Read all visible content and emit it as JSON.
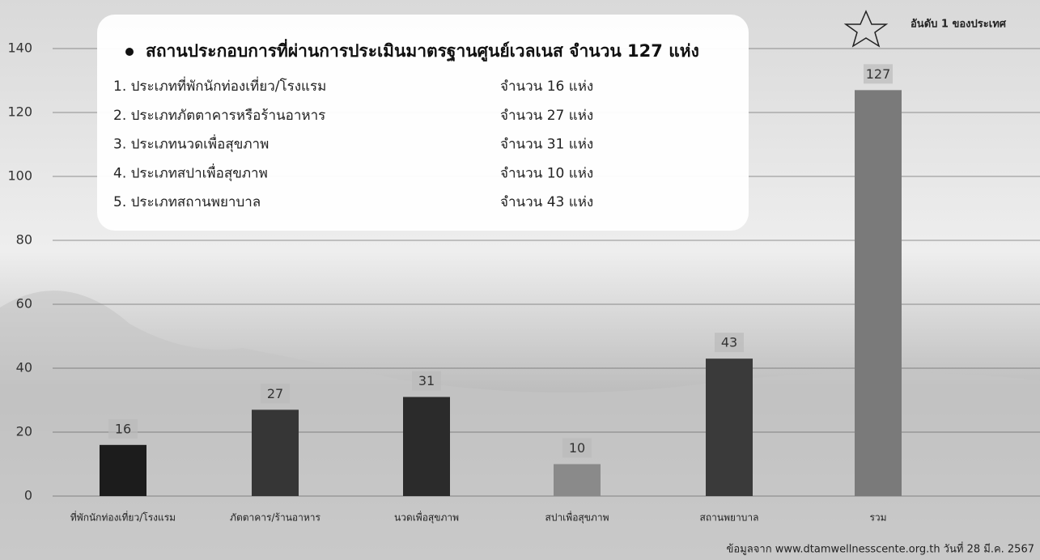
{
  "chart_data": {
    "type": "bar",
    "categories": [
      "ที่พักนักท่องเที่ยว/โรงแรม",
      "ภัตตาคาร/ร้านอาหาร",
      "นวดเพื่อสุขภาพ",
      "สปาเพื่อสุขภาพ",
      "สถานพยาบาล",
      "รวม"
    ],
    "values": [
      16,
      27,
      31,
      10,
      43,
      127
    ],
    "colors": [
      "#1c1c1c",
      "#363636",
      "#2b2b2b",
      "#8a8a8a",
      "#3a3a3a",
      "#7a7a7a"
    ],
    "ylim": [
      0,
      140
    ],
    "yticks": [
      0,
      20,
      40,
      60,
      80,
      100,
      120,
      140
    ],
    "grid": true,
    "info_box": {
      "title": "สถานประกอบการที่ผ่านการประเมินมาตรฐานศูนย์เวลเนส จำนวน 127 แห่ง",
      "items": [
        {
          "label": "1. ประเภทที่พักนักท่องเที่ยว/โรงแรม",
          "count": "จำนวน 16 แห่ง"
        },
        {
          "label": "2. ประเภทภัตตาคารหรือร้านอาหาร",
          "count": "จำนวน 27 แห่ง"
        },
        {
          "label": "3. ประเภทนวดเพื่อสุขภาพ",
          "count": "จำนวน 31 แห่ง"
        },
        {
          "label": "4. ประเภทสปาเพื่อสุขภาพ",
          "count": "จำนวน 10 แห่ง"
        },
        {
          "label": "5. ประเภทสถานพยาบาล",
          "count": "จำนวน 43 แห่ง"
        }
      ]
    },
    "badge": "อันดับ 1 ของประเทศ",
    "source": "ข้อมูลจาก www.dtamwellnesscente.org.th วันที่ 28 มี.ค. 2567"
  }
}
